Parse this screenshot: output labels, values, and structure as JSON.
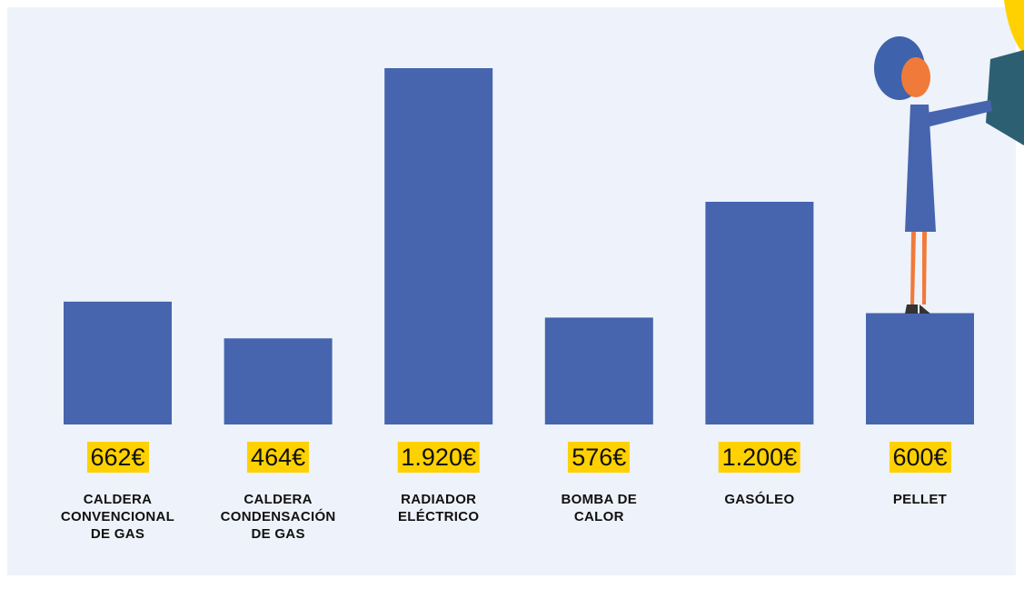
{
  "chart_data": {
    "type": "bar",
    "categories": [
      "CALDERA CONVENCIONAL DE GAS",
      "CALDERA CONDENSACIÓN DE GAS",
      "RADIADOR ELÉCTRICO",
      "BOMBA DE CALOR",
      "GASÓLEO",
      "PELLET"
    ],
    "values": [
      662,
      464,
      1920,
      576,
      1200,
      600
    ],
    "value_labels": [
      "662€",
      "464€",
      "1.920€",
      "576€",
      "1.200€",
      "600€"
    ],
    "color": "#4665ae"
  }
}
